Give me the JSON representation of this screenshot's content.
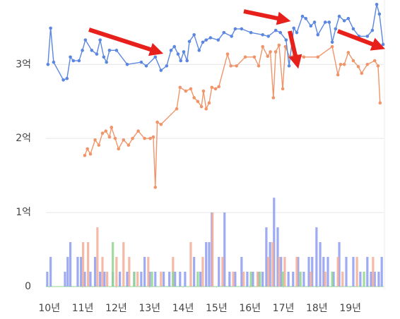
{
  "chart_data": {
    "type": "line",
    "xlim": [
      2009.9,
      2020.0
    ],
    "ylim": [
      0,
      3.87
    ],
    "y2lim": [
      0,
      38.7
    ],
    "grid": true,
    "xticks": [
      {
        "value": 2010,
        "label": "10년"
      },
      {
        "value": 2011,
        "label": "11년"
      },
      {
        "value": 2012,
        "label": "12년"
      },
      {
        "value": 2013,
        "label": "13년"
      },
      {
        "value": 2014,
        "label": "14년"
      },
      {
        "value": 2015,
        "label": "15년"
      },
      {
        "value": 2016,
        "label": "16년"
      },
      {
        "value": 2017,
        "label": "17년"
      },
      {
        "value": 2018,
        "label": "18년"
      },
      {
        "value": 2019,
        "label": "19년"
      }
    ],
    "yticks": [
      0,
      {
        "value": 1,
        "label": "1억"
      },
      {
        "value": 2,
        "label": "2억"
      },
      {
        "value": 3,
        "label": "3억"
      }
    ],
    "series": [
      {
        "type": "bar",
        "axis": "y2",
        "color": "#8d9cf0",
        "x": [
          2009.94,
          2010.04,
          2010.47,
          2010.55,
          2010.63,
          2010.85,
          2010.95,
          2011.06,
          2011.23,
          2011.37,
          2011.52,
          2011.65,
          2011.9,
          2012.11,
          2012.33,
          2012.54,
          2012.75,
          2012.85,
          2013.0,
          2013.17,
          2013.42,
          2013.59,
          2013.76,
          2013.91,
          2014.06,
          2014.33,
          2014.52,
          2014.69,
          2014.78,
          2014.86,
          2015.07,
          2015.24,
          2015.39,
          2015.56,
          2015.75,
          2015.92,
          2016.09,
          2016.26,
          2016.38,
          2016.49,
          2016.6,
          2016.72,
          2016.83,
          2016.93,
          2017.15,
          2017.29,
          2017.44,
          2017.61,
          2017.76,
          2017.86,
          2017.99,
          2018.1,
          2018.2,
          2018.33,
          2018.5,
          2018.67,
          2018.88,
          2019.09,
          2019.3,
          2019.51,
          2019.62,
          2019.73,
          2019.85,
          2019.94
        ],
        "values": [
          2,
          4,
          2,
          4,
          6,
          4,
          4,
          2,
          2,
          4,
          2,
          2,
          2,
          2,
          2,
          2,
          2,
          4,
          2,
          2,
          2,
          2,
          2,
          2,
          2,
          4,
          2,
          6,
          6,
          10,
          4,
          10,
          2,
          2,
          4,
          2,
          2,
          2,
          2,
          8,
          6,
          12,
          8,
          4,
          2,
          2,
          4,
          2,
          4,
          4,
          8,
          6,
          4,
          4,
          2,
          6,
          4,
          4,
          2,
          4,
          2,
          2,
          2,
          4
        ]
      },
      {
        "type": "bar",
        "axis": "y2",
        "color": "#f5ad98",
        "x": [
          2011.01,
          2011.16,
          2011.44,
          2011.59,
          2011.73,
          2012.01,
          2012.22,
          2012.39,
          2012.64,
          2012.96,
          2013.34,
          2013.7,
          2014.23,
          2014.59,
          2014.88,
          2015.18,
          2015.5,
          2015.81,
          2016.23,
          2016.55,
          2016.68,
          2016.87,
          2017.04,
          2017.4,
          2017.82,
          2018.25,
          2018.63,
          2018.77,
          2019.2,
          2019.68
        ],
        "values": [
          6,
          6,
          8,
          4,
          2,
          4,
          6,
          4,
          2,
          4,
          2,
          4,
          6,
          4,
          10,
          4,
          2,
          2,
          2,
          4,
          6,
          4,
          4,
          4,
          2,
          2,
          4,
          2,
          4,
          4
        ]
      },
      {
        "type": "bar",
        "axis": "y2",
        "color": "#8fd68f",
        "x": [
          2011.9,
          2012.54,
          2013.07,
          2013.7,
          2014.44,
          2016.03,
          2016.3,
          2016.98,
          2017.51,
          2018.46,
          2019.41
        ],
        "values": [
          6,
          2,
          2,
          2,
          2,
          2,
          2,
          2,
          2,
          2,
          2
        ]
      },
      {
        "type": "line",
        "color": "#f0956a",
        "x": [
          2011.06,
          2011.14,
          2011.23,
          2011.37,
          2011.48,
          2011.59,
          2011.69,
          2011.8,
          2011.86,
          2011.97,
          2012.07,
          2012.22,
          2012.37,
          2012.49,
          2012.66,
          2012.85,
          2013.02,
          2013.11,
          2013.17,
          2013.23,
          2013.34,
          2013.81,
          2013.91,
          2014.08,
          2014.23,
          2014.33,
          2014.44,
          2014.55,
          2014.61,
          2014.69,
          2014.78,
          2014.86,
          2014.97,
          2015.07,
          2015.33,
          2015.43,
          2015.6,
          2015.86,
          2016.13,
          2016.26,
          2016.38,
          2016.53,
          2016.61,
          2016.7,
          2016.77,
          2016.87,
          2016.98,
          2017.06,
          2017.19,
          2017.36,
          2017.61,
          2018.03,
          2018.46,
          2018.63,
          2018.71,
          2018.82,
          2018.94,
          2019.09,
          2019.24,
          2019.34,
          2019.51,
          2019.73,
          2019.83,
          2019.89
        ],
        "values": [
          1.77,
          1.86,
          1.79,
          1.98,
          1.91,
          2.07,
          2.1,
          2.02,
          2.15,
          2.0,
          1.86,
          1.98,
          1.91,
          2.0,
          2.1,
          2.0,
          2.0,
          2.02,
          1.34,
          2.22,
          2.19,
          2.4,
          2.69,
          2.64,
          2.67,
          2.55,
          2.5,
          2.43,
          2.64,
          2.4,
          2.48,
          2.69,
          2.67,
          2.7,
          3.14,
          2.98,
          2.98,
          3.1,
          3.1,
          2.98,
          3.24,
          3.11,
          3.17,
          2.55,
          3.17,
          3.26,
          2.67,
          3.24,
          3.1,
          3.14,
          3.1,
          3.1,
          3.24,
          2.86,
          3.0,
          3.0,
          3.16,
          3.05,
          2.97,
          2.88,
          3.0,
          3.05,
          2.98,
          2.48
        ]
      },
      {
        "type": "line",
        "color": "#5b87e0",
        "x": [
          2009.96,
          2010.04,
          2010.13,
          2010.42,
          2010.53,
          2010.63,
          2010.72,
          2010.89,
          2010.99,
          2011.08,
          2011.27,
          2011.42,
          2011.52,
          2011.63,
          2011.71,
          2011.8,
          2012.01,
          2012.33,
          2012.75,
          2012.9,
          2013.17,
          2013.34,
          2013.51,
          2013.64,
          2013.74,
          2013.85,
          2013.93,
          2014.02,
          2014.12,
          2014.19,
          2014.33,
          2014.48,
          2014.59,
          2014.69,
          2014.82,
          2015.05,
          2015.22,
          2015.45,
          2015.56,
          2015.75,
          2016.03,
          2016.38,
          2016.55,
          2016.77,
          2016.91,
          2017.08,
          2017.17,
          2017.31,
          2017.4,
          2017.57,
          2017.67,
          2017.82,
          2017.93,
          2018.03,
          2018.25,
          2018.37,
          2018.46,
          2018.56,
          2018.67,
          2018.82,
          2018.94,
          2019.09,
          2019.26,
          2019.51,
          2019.66,
          2019.79,
          2019.87,
          2019.98
        ],
        "values": [
          3.0,
          3.49,
          3.03,
          2.79,
          2.81,
          3.1,
          3.05,
          3.05,
          3.19,
          3.33,
          3.19,
          3.14,
          3.33,
          3.1,
          3.03,
          3.19,
          3.19,
          3.0,
          3.03,
          2.98,
          3.1,
          2.92,
          2.98,
          3.19,
          3.24,
          3.14,
          3.05,
          3.17,
          3.05,
          3.31,
          3.4,
          3.19,
          3.3,
          3.33,
          3.36,
          3.33,
          3.43,
          3.38,
          3.48,
          3.48,
          3.43,
          3.4,
          3.38,
          3.46,
          3.43,
          3.33,
          2.98,
          3.49,
          3.43,
          3.65,
          3.62,
          3.52,
          3.57,
          3.4,
          3.57,
          3.57,
          3.3,
          3.48,
          3.65,
          3.59,
          3.62,
          3.48,
          3.38,
          3.38,
          3.46,
          3.81,
          3.68,
          3.27
        ]
      }
    ]
  }
}
